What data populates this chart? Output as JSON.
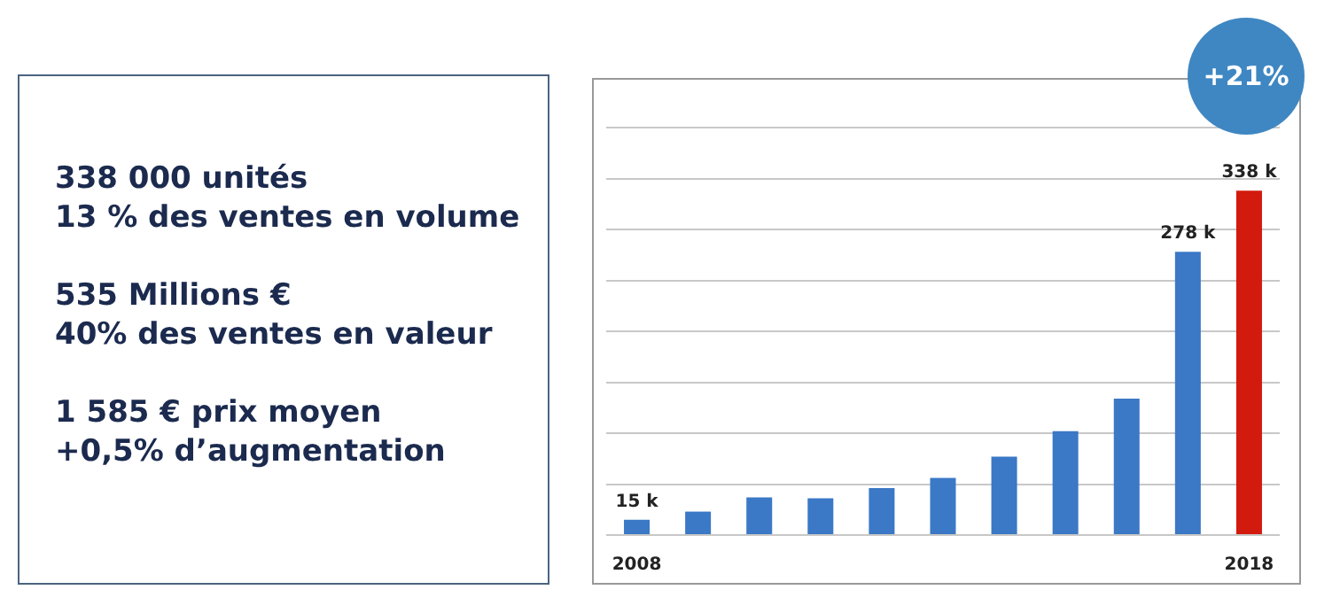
{
  "chart_data": [
    {
      "type": "other",
      "annotations": [
        "338 000 unités",
        "13 % des ventes en volume",
        "535 Millions €",
        "40% des ventes en valeur",
        "1 585 € prix moyen",
        "+0,5% d’augmentation"
      ]
    },
    {
      "type": "bar",
      "categories": [
        "2008",
        null,
        null,
        null,
        null,
        null,
        null,
        null,
        null,
        null,
        "2018"
      ],
      "values": [
        15,
        23,
        37,
        36,
        46,
        56,
        77,
        102,
        134,
        278,
        338
      ],
      "colors": [
        "#3b78c6",
        "#3b78c6",
        "#3b78c6",
        "#3b78c6",
        "#3b78c6",
        "#3b78c6",
        "#3b78c6",
        "#3b78c6",
        "#3b78c6",
        "#3b78c6",
        "#d21a0e"
      ],
      "value_labels": [
        "15 k",
        null,
        null,
        null,
        null,
        null,
        null,
        null,
        null,
        "278 k",
        "338 k"
      ],
      "ylim": [
        0,
        400
      ],
      "yticks": [
        {
          "value": 0,
          "label": null
        },
        {
          "value": 50,
          "label": null
        },
        {
          "value": 100,
          "label": null
        },
        {
          "value": 150,
          "label": null
        },
        {
          "value": 200,
          "label": null
        },
        {
          "value": 250,
          "label": null
        },
        {
          "value": 300,
          "label": null
        },
        {
          "value": 350,
          "label": null
        },
        {
          "value": 400,
          "label": null
        }
      ],
      "grid": "y",
      "tick_labels": "x",
      "legend": false,
      "annotations": [
        "+21%"
      ]
    }
  ]
}
